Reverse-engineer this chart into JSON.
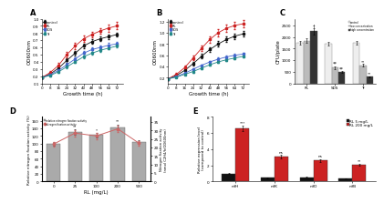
{
  "panel_A": {
    "title": "A",
    "xlabel": "Growth time (h)",
    "ylabel": "OD600nm",
    "xlim": [
      0,
      80
    ],
    "ylim": [
      0.1,
      1.0
    ],
    "xticks": [
      0,
      8,
      16,
      24,
      32,
      40,
      48,
      56,
      64,
      72
    ],
    "yticks": [
      0.1,
      0.2,
      0.3,
      0.4,
      0.5,
      0.6,
      0.7,
      0.8,
      0.9,
      1.0
    ],
    "series": {
      "control": {
        "color": "#111111",
        "x": [
          0,
          8,
          16,
          24,
          32,
          40,
          48,
          56,
          64,
          72
        ],
        "y": [
          0.18,
          0.23,
          0.31,
          0.42,
          0.52,
          0.62,
          0.68,
          0.72,
          0.75,
          0.78
        ],
        "yerr": [
          0.01,
          0.02,
          0.02,
          0.03,
          0.03,
          0.03,
          0.03,
          0.03,
          0.03,
          0.03
        ]
      },
      "RL": {
        "color": "#cc2222",
        "x": [
          0,
          8,
          16,
          24,
          32,
          40,
          48,
          56,
          64,
          72
        ],
        "y": [
          0.18,
          0.25,
          0.35,
          0.5,
          0.62,
          0.72,
          0.78,
          0.83,
          0.87,
          0.9
        ],
        "yerr": [
          0.01,
          0.02,
          0.03,
          0.04,
          0.04,
          0.04,
          0.04,
          0.04,
          0.05,
          0.05
        ]
      },
      "SDS": {
        "color": "#4466cc",
        "x": [
          0,
          8,
          16,
          24,
          32,
          40,
          48,
          56,
          64,
          72
        ],
        "y": [
          0.18,
          0.22,
          0.28,
          0.36,
          0.44,
          0.52,
          0.57,
          0.6,
          0.63,
          0.65
        ],
        "yerr": [
          0.01,
          0.01,
          0.02,
          0.02,
          0.02,
          0.03,
          0.03,
          0.03,
          0.03,
          0.03
        ]
      },
      "Tr": {
        "color": "#228888",
        "x": [
          0,
          8,
          16,
          24,
          32,
          40,
          48,
          56,
          64,
          72
        ],
        "y": [
          0.18,
          0.21,
          0.26,
          0.33,
          0.4,
          0.47,
          0.52,
          0.56,
          0.59,
          0.62
        ],
        "yerr": [
          0.01,
          0.01,
          0.01,
          0.02,
          0.02,
          0.02,
          0.02,
          0.02,
          0.02,
          0.02
        ]
      }
    }
  },
  "panel_B": {
    "title": "B",
    "xlabel": "Growth time (h)",
    "ylabel": "OD600nm",
    "xlim": [
      0,
      80
    ],
    "ylim": [
      0.1,
      1.2
    ],
    "xticks": [
      0,
      8,
      16,
      24,
      32,
      40,
      48,
      56,
      64,
      72
    ],
    "yticks": [
      0.2,
      0.4,
      0.6,
      0.8,
      1.0,
      1.2
    ],
    "series": {
      "control": {
        "color": "#111111",
        "x": [
          0,
          8,
          16,
          24,
          32,
          40,
          48,
          56,
          64,
          72
        ],
        "y": [
          0.18,
          0.24,
          0.33,
          0.45,
          0.58,
          0.7,
          0.8,
          0.88,
          0.94,
          0.98
        ],
        "yerr": [
          0.01,
          0.02,
          0.02,
          0.03,
          0.04,
          0.04,
          0.05,
          0.05,
          0.05,
          0.05
        ]
      },
      "RL": {
        "color": "#cc2222",
        "x": [
          0,
          8,
          16,
          24,
          32,
          40,
          48,
          56,
          64,
          72
        ],
        "y": [
          0.18,
          0.26,
          0.38,
          0.55,
          0.72,
          0.88,
          1.0,
          1.08,
          1.13,
          1.16
        ],
        "yerr": [
          0.01,
          0.02,
          0.03,
          0.04,
          0.05,
          0.06,
          0.06,
          0.07,
          0.07,
          0.07
        ]
      },
      "SDS": {
        "color": "#4466cc",
        "x": [
          0,
          8,
          16,
          24,
          32,
          40,
          48,
          56,
          64,
          72
        ],
        "y": [
          0.18,
          0.22,
          0.28,
          0.35,
          0.42,
          0.48,
          0.53,
          0.57,
          0.6,
          0.62
        ],
        "yerr": [
          0.01,
          0.01,
          0.02,
          0.02,
          0.02,
          0.02,
          0.03,
          0.03,
          0.03,
          0.03
        ]
      },
      "Tr": {
        "color": "#228888",
        "x": [
          0,
          8,
          16,
          24,
          32,
          40,
          48,
          56,
          64,
          72
        ],
        "y": [
          0.18,
          0.21,
          0.26,
          0.31,
          0.37,
          0.43,
          0.48,
          0.52,
          0.55,
          0.58
        ],
        "yerr": [
          0.01,
          0.01,
          0.01,
          0.02,
          0.02,
          0.02,
          0.02,
          0.02,
          0.02,
          0.02
        ]
      }
    }
  },
  "panel_C": {
    "title": "C",
    "ylabel": "CFU/plate",
    "ylim": [
      0,
      2800
    ],
    "yticks": [
      0,
      500,
      1000,
      1500,
      2000,
      2500
    ],
    "categories": [
      "RL",
      "SDS",
      "Tr"
    ],
    "groups": {
      "control": {
        "color": "#eeeeee",
        "edgecolor": "#888888",
        "values": [
          1750,
          1700,
          1750
        ],
        "yerr": [
          80,
          80,
          80
        ]
      },
      "low concentration": {
        "color": "#bbbbbb",
        "edgecolor": "#888888",
        "values": [
          1850,
          680,
          780
        ],
        "yerr": [
          100,
          55,
          55
        ]
      },
      "high concentration": {
        "color": "#333333",
        "edgecolor": "#555555",
        "values": [
          2250,
          480,
          280
        ],
        "yerr": [
          120,
          45,
          35
        ]
      }
    },
    "sig_SDS_low": "**",
    "sig_SDS_high": "**",
    "sig_Tr_low": "**",
    "sig_Tr_high": "**",
    "sig_RL_high": "†"
  },
  "panel_D": {
    "title": "D",
    "xlabel": "RL (mg/L)",
    "ylabel_left": "Relative nitrogen fixation activity (%)",
    "ylabel_right": "Nitrogen fixation activity\n(nmol C2H4/h/OD600nm)",
    "bar_color": "#aaaaaa",
    "bar_edgecolor": "#666666",
    "line_color": "#cc6666",
    "rl_values": [
      0,
      25,
      100,
      200,
      500
    ],
    "bar_heights": [
      100,
      130,
      122,
      142,
      103
    ],
    "bar_yerr": [
      5,
      7,
      6,
      8,
      5
    ],
    "line_values": [
      22.0,
      28.5,
      26.8,
      31.0,
      22.5
    ],
    "line_yerr": [
      1.2,
      1.8,
      1.8,
      2.0,
      1.2
    ],
    "bar_ylim": [
      0,
      170
    ],
    "bar_yticks": [
      0,
      20,
      40,
      60,
      80,
      100,
      120,
      140,
      160
    ],
    "line_ylim": [
      0,
      38
    ],
    "line_yticks": [
      0,
      5,
      10,
      15,
      20,
      25,
      30,
      35
    ],
    "sig_texts": [
      "",
      "**",
      "*",
      "**",
      ""
    ],
    "xtick_labels": [
      "0",
      "25",
      "100",
      "200",
      "500"
    ]
  },
  "panel_E": {
    "title": "E",
    "ylabel": "Relative expression level\n(compared to control)",
    "ylim": [
      0,
      8
    ],
    "yticks": [
      0,
      2,
      4,
      6,
      8
    ],
    "categories": [
      "nifH",
      "nifK",
      "nifD",
      "nifB"
    ],
    "groups": {
      "RL 5 mg/L": {
        "color": "#111111",
        "values": [
          1.0,
          0.45,
          0.55,
          0.38
        ],
        "yerr": [
          0.06,
          0.04,
          0.04,
          0.03
        ]
      },
      "RL 200 mg/L": {
        "color": "#cc2222",
        "values": [
          6.6,
          3.1,
          2.6,
          2.1
        ],
        "yerr": [
          0.35,
          0.18,
          0.18,
          0.14
        ]
      }
    },
    "sig_labels": [
      {
        "cat": 0,
        "group": 1,
        "text": "***"
      },
      {
        "cat": 1,
        "group": 1,
        "text": "ns"
      },
      {
        "cat": 2,
        "group": 1,
        "text": "ns"
      },
      {
        "cat": 3,
        "group": 1,
        "text": "**"
      }
    ]
  },
  "bg_color": "#ffffff"
}
